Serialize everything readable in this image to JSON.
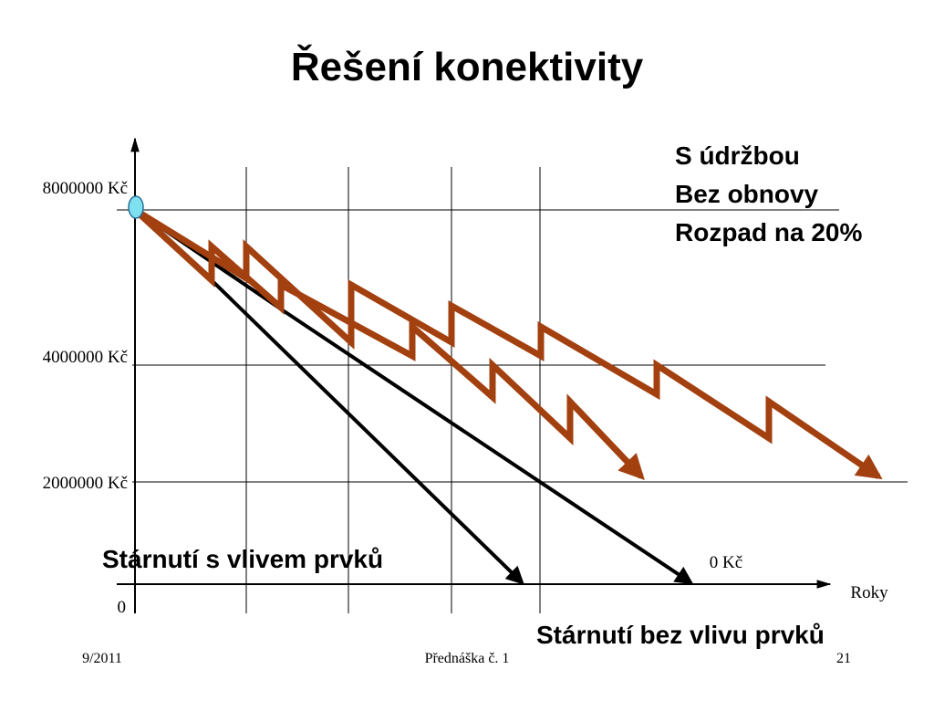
{
  "title": "Řešení konektivity",
  "y_labels": [
    "8000000 Kč",
    "4000000 Kč",
    "2000000 Kč",
    "0"
  ],
  "x_axis_label": "Roky",
  "zero_label": "0 Kč",
  "legend": [
    "S údržbou",
    "Bez obnovy",
    "Rozpad na 20%"
  ],
  "annotations": [
    "Stárnutí s vlivem prvků",
    "Stárnutí bez vlivu prvků"
  ],
  "footer": {
    "left": "9/2011",
    "center": "Přednáška č. 1",
    "right": "21"
  }
}
